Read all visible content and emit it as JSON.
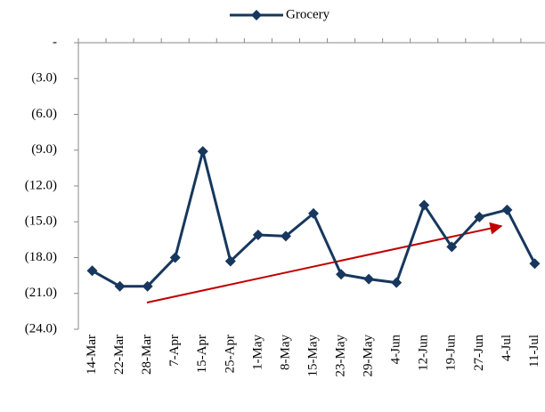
{
  "chart_data": {
    "type": "line",
    "categories": [
      "14-Mar",
      "22-Mar",
      "28-Mar",
      "7-Apr",
      "15-Apr",
      "25-Apr",
      "1-May",
      "8-May",
      "15-May",
      "23-May",
      "29-May",
      "4-Jun",
      "12-Jun",
      "19-Jun",
      "27-Jun",
      "4-Jul",
      "11-Jul"
    ],
    "series": [
      {
        "name": "Grocery",
        "color": "#17375e",
        "values": [
          -19.1,
          -20.4,
          -20.4,
          -18.0,
          -9.1,
          -18.3,
          -16.1,
          -16.2,
          -14.3,
          -19.4,
          -19.8,
          -20.1,
          -13.6,
          -17.1,
          -14.6,
          -14.0,
          -18.5
        ]
      }
    ],
    "ylim": [
      -24,
      0
    ],
    "yticks": [
      {
        "value": 0,
        "label": "-"
      },
      {
        "value": -3,
        "label": "(3.0)"
      },
      {
        "value": -6,
        "label": "(6.0)"
      },
      {
        "value": -9,
        "label": "(9.0)"
      },
      {
        "value": -12,
        "label": "(12.0)"
      },
      {
        "value": -15,
        "label": "(15.0)"
      },
      {
        "value": -18,
        "label": "(18.0)"
      },
      {
        "value": -21,
        "label": "(21.0)"
      },
      {
        "value": -24,
        "label": "(24.0)"
      }
    ],
    "grid": false,
    "legend": "top"
  }
}
